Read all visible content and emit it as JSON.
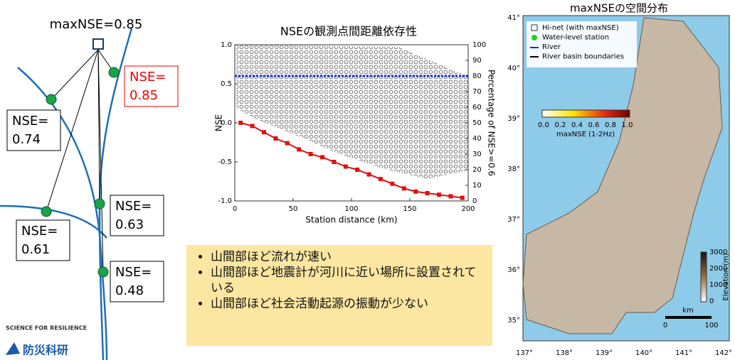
{
  "diagram": {
    "title": "maxNSE=0.85",
    "boxes": [
      {
        "lines": [
          "NSE=",
          "0.85"
        ]
      },
      {
        "lines": [
          "NSE=",
          "0.74"
        ]
      },
      {
        "lines": [
          "NSE=",
          "0.63"
        ]
      },
      {
        "lines": [
          "NSE=",
          "0.61"
        ]
      },
      {
        "lines": [
          "NSE=",
          "0.48"
        ]
      }
    ]
  },
  "nse_chart": {
    "title": "NSEの観測点間距離依存性",
    "xlabel": "Station distance (km)",
    "ylabel": "NSE",
    "y2label": "Percentage of NSE>=0.6",
    "xlim": [
      0,
      200
    ],
    "ylim": [
      -1,
      1
    ],
    "y2lim": [
      0,
      100
    ],
    "xticks": [
      0,
      50,
      100,
      150,
      200
    ],
    "yticks": [
      {
        "value": 1,
        "label": "1.0"
      },
      0.5,
      {
        "value": 0,
        "label": "0.0"
      },
      -0.5,
      {
        "value": -1,
        "label": "-1.0"
      }
    ],
    "y2ticks": [
      0,
      10,
      20,
      30,
      40,
      50,
      60,
      70,
      80,
      90,
      100
    ],
    "threshold": 0.6,
    "series": [
      {
        "color": "#e01010",
        "axis": "y2",
        "x": [
          5,
          15,
          25,
          35,
          45,
          55,
          65,
          75,
          85,
          95,
          105,
          115,
          125,
          135,
          145,
          155,
          165,
          175,
          185,
          195
        ],
        "values": [
          50,
          48,
          44,
          40,
          37,
          33,
          30,
          28,
          25,
          22,
          20,
          17,
          14,
          11,
          8,
          6,
          5,
          4,
          3,
          2
        ]
      }
    ]
  },
  "bullets": [
    "山間部ほど流れが速い",
    "山間部ほど地震計が河川に近い場所に設置されている",
    "山間部ほど社会活動起源の振動が少ない"
  ],
  "map": {
    "title": "maxNSEの空間分布",
    "legend": [
      "Hi-net (with maxNSE)",
      "Water-level station",
      "River",
      "River basin boundaries"
    ],
    "colorbar_ticks": [
      "0.0",
      "0.2",
      "0.4",
      "0.6",
      "0.8",
      "1.0"
    ],
    "colorbar_label": "maxNSE (1-2Hz)",
    "elevation_ticks": [
      "3000",
      "2000",
      "1000",
      "0"
    ],
    "elevation_label": "Elevation (m)",
    "lat_ticks": [
      "41°",
      "40°",
      "39°",
      "38°",
      "37°",
      "36°",
      "35°"
    ],
    "lon_ticks": [
      "137°",
      "138°",
      "139°",
      "140°",
      "141°",
      "142°"
    ],
    "scale_label": "km",
    "scale_ticks": [
      "0",
      "100"
    ]
  },
  "logo": {
    "tagline": "SCIENCE FOR RESILIENCE",
    "name": "防災科研"
  }
}
